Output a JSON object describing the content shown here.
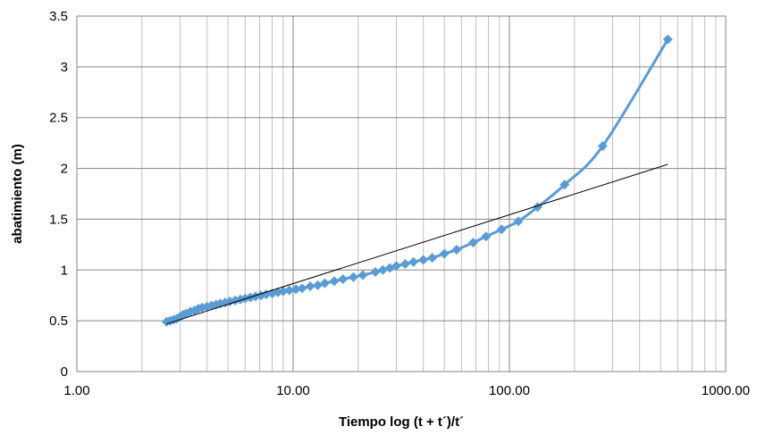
{
  "chart_data": {
    "type": "scatter",
    "title": "",
    "xlabel": "Tiempo log (t + t´)/t´",
    "ylabel": "abatimiento (m)",
    "x_scale": "log",
    "xlim": [
      1,
      1000
    ],
    "ylim": [
      0,
      3.5
    ],
    "x_tick_labels": [
      "1.00",
      "10.00",
      "100.00",
      "1000.00"
    ],
    "y_tick_labels": [
      "0",
      "0.5",
      "1",
      "1.5",
      "2",
      "2.5",
      "3",
      "3.5"
    ],
    "grid": true,
    "legend": "none",
    "series": [
      {
        "style": "smooth line with diamond markers",
        "color": "#5b9bd5",
        "x": [
          2.6,
          2.7,
          2.8,
          2.9,
          3.0,
          3.1,
          3.2,
          3.35,
          3.5,
          3.65,
          3.8,
          4.0,
          4.2,
          4.4,
          4.6,
          4.85,
          5.1,
          5.4,
          5.7,
          6.0,
          6.35,
          6.7,
          7.1,
          7.5,
          8.0,
          8.5,
          9.0,
          9.6,
          10.3,
          11.0,
          12.0,
          13.0,
          14.0,
          15.5,
          17.0,
          19.0,
          21.0,
          24.0,
          26.0,
          28.0,
          30.0,
          33.0,
          36.0,
          40.0,
          44.0,
          50.0,
          57.0,
          68.0,
          78.0,
          92.0,
          110.0,
          135.0,
          180.0,
          270.0,
          540.0
        ],
        "y": [
          0.49,
          0.5,
          0.51,
          0.52,
          0.54,
          0.56,
          0.57,
          0.59,
          0.6,
          0.62,
          0.63,
          0.64,
          0.65,
          0.66,
          0.67,
          0.68,
          0.69,
          0.7,
          0.71,
          0.72,
          0.73,
          0.74,
          0.75,
          0.76,
          0.77,
          0.78,
          0.79,
          0.8,
          0.81,
          0.82,
          0.84,
          0.85,
          0.87,
          0.89,
          0.91,
          0.93,
          0.95,
          0.98,
          1.0,
          1.02,
          1.04,
          1.06,
          1.08,
          1.1,
          1.12,
          1.16,
          1.2,
          1.27,
          1.33,
          1.4,
          1.48,
          1.62,
          1.84,
          2.22,
          3.27
        ]
      },
      {
        "style": "straight line",
        "color": "#000000",
        "x": [
          2.6,
          540.0
        ],
        "y": [
          0.47,
          2.04
        ]
      }
    ]
  }
}
